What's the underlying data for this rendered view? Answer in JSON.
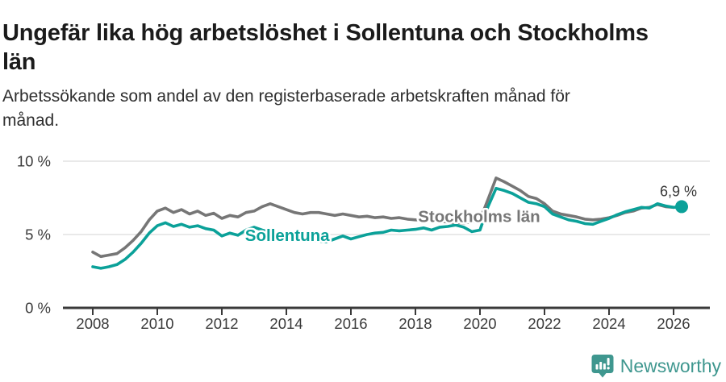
{
  "header": {
    "title_lines": [
      "Ungefär lika hög arbetslöshet i Sollentuna och Stockholms",
      "län"
    ],
    "subtitle_lines": [
      "Arbetssökande som andel av den registerbaserade arbetskraften månad för",
      "månad."
    ]
  },
  "chart_data": {
    "type": "line",
    "title": "Ungefär lika hög arbetslöshet i Sollentuna och Stockholms län",
    "subtitle": "Arbetssökande som andel av den registerbaserade arbetskraften månad för månad.",
    "unit": "%",
    "xlim": [
      2007.08,
      2027.12
    ],
    "ylim": [
      0,
      10.5
    ],
    "grid": "horizontal",
    "x_ticks": [
      2008,
      2010,
      2012,
      2014,
      2016,
      2018,
      2020,
      2022,
      2024,
      2026
    ],
    "y_ticks": [
      {
        "value": 0,
        "label": "0 %"
      },
      {
        "value": 5,
        "label": "5 %"
      },
      {
        "value": 10,
        "label": "10 %"
      }
    ],
    "series": [
      {
        "name": "Stockholms län",
        "color": "#767676",
        "x_start": 2008.0,
        "x_step": 0.25,
        "values": [
          3.8,
          3.5,
          3.6,
          3.7,
          4.1,
          4.6,
          5.2,
          6.0,
          6.6,
          6.8,
          6.5,
          6.7,
          6.4,
          6.6,
          6.3,
          6.45,
          6.1,
          6.3,
          6.2,
          6.5,
          6.6,
          6.9,
          7.1,
          6.9,
          6.7,
          6.5,
          6.4,
          6.5,
          6.5,
          6.4,
          6.3,
          6.4,
          6.3,
          6.2,
          6.25,
          6.15,
          6.2,
          6.1,
          6.15,
          6.05,
          6.0,
          6.0,
          5.95,
          5.9,
          5.85,
          5.8,
          5.8,
          5.85,
          6.0,
          7.4,
          8.85,
          8.6,
          8.3,
          8.0,
          7.6,
          7.45,
          7.1,
          6.6,
          6.4,
          6.3,
          6.2,
          6.05,
          6.0,
          6.05,
          6.15,
          6.3,
          6.5,
          6.6,
          6.8,
          6.85,
          7.05,
          6.9,
          6.85
        ]
      },
      {
        "name": "Sollentuna",
        "color": "#0ba199",
        "x_start": 2008.0,
        "x_step": 0.25,
        "values": [
          2.8,
          2.7,
          2.8,
          2.95,
          3.3,
          3.8,
          4.4,
          5.1,
          5.6,
          5.8,
          5.55,
          5.7,
          5.5,
          5.6,
          5.4,
          5.3,
          4.9,
          5.1,
          4.95,
          5.3,
          5.5,
          5.3,
          5.15,
          5.0,
          4.9,
          4.8,
          4.7,
          4.6,
          4.55,
          4.5,
          4.7,
          4.9,
          4.7,
          4.85,
          5.0,
          5.1,
          5.15,
          5.3,
          5.25,
          5.3,
          5.35,
          5.45,
          5.3,
          5.5,
          5.55,
          5.65,
          5.5,
          5.2,
          5.3,
          6.9,
          8.15,
          8.0,
          7.8,
          7.5,
          7.2,
          7.1,
          6.9,
          6.4,
          6.2,
          6.0,
          5.9,
          5.75,
          5.7,
          5.9,
          6.1,
          6.35,
          6.55,
          6.7,
          6.85,
          6.8,
          7.1,
          6.95,
          6.85,
          6.9
        ]
      }
    ],
    "series_labels": [
      {
        "text": "Sollentuna",
        "series": "Sollentuna",
        "color": "#0ba199",
        "x": 2012.72,
        "y": 4.55
      },
      {
        "text": "Stockholms län",
        "series": "Stockholms län",
        "color": "#767676",
        "x": 2018.08,
        "y": 5.85
      }
    ],
    "end_annotation": {
      "text": "6,9 %",
      "x": 2026.15,
      "y": 7.6
    },
    "end_dot": {
      "series": "Sollentuna",
      "x": 2026.25,
      "y": 6.9
    },
    "colors": {
      "grid": "#e2e2e2",
      "axis": "#3a3a3a",
      "tick_label": "#3a3a3a",
      "annotation": "#383838",
      "sollentuna": "#0ba199",
      "stockholms_lan": "#767676"
    }
  },
  "footer": {
    "brand": "Newsworthy",
    "logo_icon": "bar-chart-speech-bubble-icon",
    "brand_color": "#3f978f"
  }
}
